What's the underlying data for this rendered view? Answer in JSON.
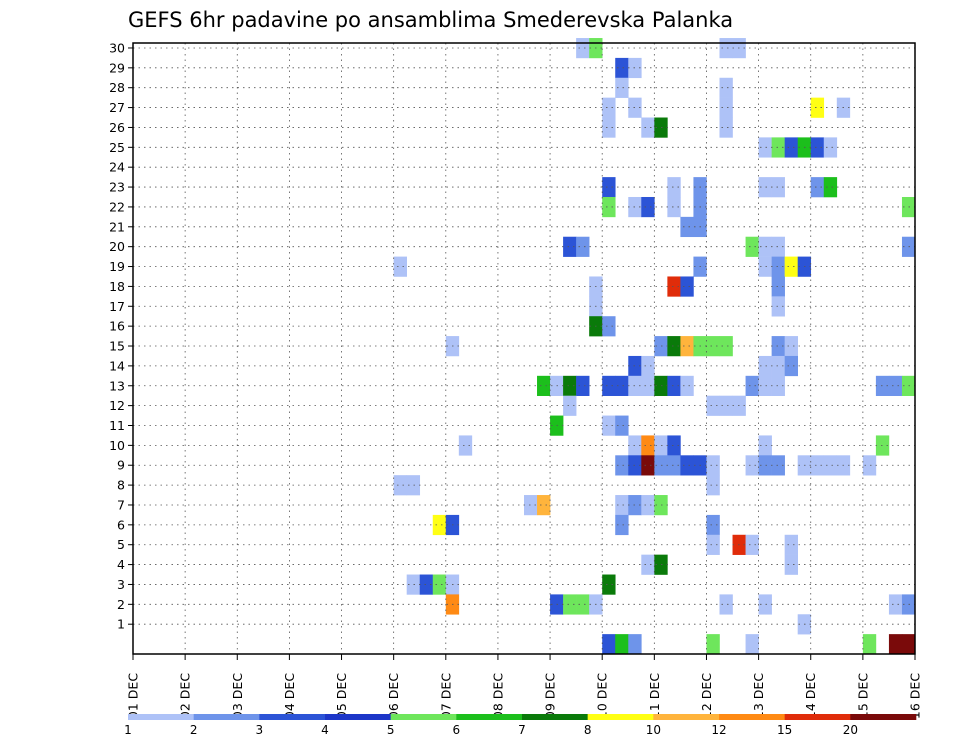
{
  "chart_data": {
    "type": "heatmap",
    "title": "GEFS 6hr padavine po ansamblima Smederevska Palanka",
    "xlabel": "",
    "ylabel": "",
    "x_tick_labels": [
      "01 DEC",
      "02 DEC",
      "03 DEC",
      "04 DEC",
      "05 DEC",
      "06 DEC",
      "07 DEC",
      "08 DEC",
      "09 DEC",
      "10 DEC",
      "11 DEC",
      "12 DEC",
      "13 DEC",
      "14 DEC",
      "15 DEC",
      "16 DEC"
    ],
    "y_tick_labels": [
      "1",
      "2",
      "3",
      "4",
      "5",
      "6",
      "7",
      "8",
      "9",
      "10",
      "11",
      "12",
      "13",
      "14",
      "15",
      "16",
      "17",
      "18",
      "19",
      "20",
      "21",
      "22",
      "23",
      "24",
      "25",
      "26",
      "27",
      "28",
      "29",
      "30"
    ],
    "y_range": [
      0,
      30
    ],
    "time_steps_per_day": 4,
    "time_steps": 60,
    "grid": true,
    "colorbar": {
      "labels": [
        "1",
        "2",
        "3",
        "4",
        "5",
        "6",
        "7",
        "8",
        "10",
        "12",
        "15",
        "20"
      ],
      "colors": [
        "#aec2f7",
        "#6e94ea",
        "#2c54d6",
        "#1d36c8",
        "#6ee65c",
        "#1cbf1c",
        "#0a7a0a",
        "#ffff14",
        "#ffb43c",
        "#ff8a14",
        "#e02c0a",
        "#7a0a0a"
      ]
    },
    "cells": [
      {
        "t": 34,
        "m": 30,
        "v": 1
      },
      {
        "t": 35,
        "m": 30,
        "v": 5
      },
      {
        "t": 45,
        "m": 30,
        "v": 1
      },
      {
        "t": 46,
        "m": 30,
        "v": 1
      },
      {
        "t": 37,
        "m": 29,
        "v": 3
      },
      {
        "t": 38,
        "m": 29,
        "v": 1
      },
      {
        "t": 37,
        "m": 28,
        "v": 1
      },
      {
        "t": 45,
        "m": 28,
        "v": 1
      },
      {
        "t": 36,
        "m": 27,
        "v": 1
      },
      {
        "t": 38,
        "m": 27,
        "v": 1
      },
      {
        "t": 45,
        "m": 27,
        "v": 1
      },
      {
        "t": 52,
        "m": 27,
        "v": 8
      },
      {
        "t": 54,
        "m": 27,
        "v": 1
      },
      {
        "t": 36,
        "m": 26,
        "v": 1
      },
      {
        "t": 39,
        "m": 26,
        "v": 1
      },
      {
        "t": 40,
        "m": 26,
        "v": 7
      },
      {
        "t": 45,
        "m": 26,
        "v": 1
      },
      {
        "t": 48,
        "m": 25,
        "v": 1
      },
      {
        "t": 49,
        "m": 25,
        "v": 5
      },
      {
        "t": 50,
        "m": 25,
        "v": 3
      },
      {
        "t": 51,
        "m": 25,
        "v": 6
      },
      {
        "t": 52,
        "m": 25,
        "v": 3
      },
      {
        "t": 53,
        "m": 25,
        "v": 1
      },
      {
        "t": 36,
        "m": 23,
        "v": 3
      },
      {
        "t": 41,
        "m": 23,
        "v": 1
      },
      {
        "t": 43,
        "m": 23,
        "v": 2
      },
      {
        "t": 48,
        "m": 23,
        "v": 1
      },
      {
        "t": 49,
        "m": 23,
        "v": 1
      },
      {
        "t": 52,
        "m": 23,
        "v": 2
      },
      {
        "t": 53,
        "m": 23,
        "v": 6
      },
      {
        "t": 36,
        "m": 22,
        "v": 5
      },
      {
        "t": 38,
        "m": 22,
        "v": 1
      },
      {
        "t": 39,
        "m": 22,
        "v": 3
      },
      {
        "t": 41,
        "m": 22,
        "v": 1
      },
      {
        "t": 43,
        "m": 22,
        "v": 2
      },
      {
        "t": 59,
        "m": 22,
        "v": 5
      },
      {
        "t": 43,
        "m": 21,
        "v": 2
      },
      {
        "t": 42,
        "m": 21,
        "v": 2
      },
      {
        "t": 33,
        "m": 20,
        "v": 3
      },
      {
        "t": 34,
        "m": 20,
        "v": 2
      },
      {
        "t": 47,
        "m": 20,
        "v": 5
      },
      {
        "t": 48,
        "m": 20,
        "v": 1
      },
      {
        "t": 49,
        "m": 20,
        "v": 1
      },
      {
        "t": 59,
        "m": 20,
        "v": 2
      },
      {
        "t": 20,
        "m": 19,
        "v": 1
      },
      {
        "t": 43,
        "m": 19,
        "v": 2
      },
      {
        "t": 48,
        "m": 19,
        "v": 1
      },
      {
        "t": 49,
        "m": 19,
        "v": 2
      },
      {
        "t": 50,
        "m": 19,
        "v": 8
      },
      {
        "t": 51,
        "m": 19,
        "v": 3
      },
      {
        "t": 35,
        "m": 18,
        "v": 1
      },
      {
        "t": 41,
        "m": 18,
        "v": 15
      },
      {
        "t": 42,
        "m": 18,
        "v": 3
      },
      {
        "t": 49,
        "m": 18,
        "v": 2
      },
      {
        "t": 35,
        "m": 17,
        "v": 1
      },
      {
        "t": 49,
        "m": 17,
        "v": 1
      },
      {
        "t": 35,
        "m": 16,
        "v": 7
      },
      {
        "t": 36,
        "m": 16,
        "v": 2
      },
      {
        "t": 24,
        "m": 15,
        "v": 1
      },
      {
        "t": 40,
        "m": 15,
        "v": 2
      },
      {
        "t": 41,
        "m": 15,
        "v": 7
      },
      {
        "t": 42,
        "m": 15,
        "v": 10
      },
      {
        "t": 43,
        "m": 15,
        "v": 5
      },
      {
        "t": 44,
        "m": 15,
        "v": 5
      },
      {
        "t": 45,
        "m": 15,
        "v": 5
      },
      {
        "t": 49,
        "m": 15,
        "v": 2
      },
      {
        "t": 50,
        "m": 15,
        "v": 1
      },
      {
        "t": 38,
        "m": 14,
        "v": 3
      },
      {
        "t": 39,
        "m": 14,
        "v": 1
      },
      {
        "t": 48,
        "m": 14,
        "v": 1
      },
      {
        "t": 49,
        "m": 14,
        "v": 1
      },
      {
        "t": 50,
        "m": 14,
        "v": 2
      },
      {
        "t": 31,
        "m": 13,
        "v": 6
      },
      {
        "t": 32,
        "m": 13,
        "v": 1
      },
      {
        "t": 33,
        "m": 13,
        "v": 7
      },
      {
        "t": 34,
        "m": 13,
        "v": 3
      },
      {
        "t": 36,
        "m": 13,
        "v": 3
      },
      {
        "t": 37,
        "m": 13,
        "v": 3
      },
      {
        "t": 38,
        "m": 13,
        "v": 1
      },
      {
        "t": 39,
        "m": 13,
        "v": 1
      },
      {
        "t": 40,
        "m": 13,
        "v": 7
      },
      {
        "t": 41,
        "m": 13,
        "v": 3
      },
      {
        "t": 42,
        "m": 13,
        "v": 1
      },
      {
        "t": 47,
        "m": 13,
        "v": 2
      },
      {
        "t": 48,
        "m": 13,
        "v": 1
      },
      {
        "t": 49,
        "m": 13,
        "v": 1
      },
      {
        "t": 57,
        "m": 13,
        "v": 2
      },
      {
        "t": 58,
        "m": 13,
        "v": 2
      },
      {
        "t": 59,
        "m": 13,
        "v": 5
      },
      {
        "t": 33,
        "m": 12,
        "v": 1
      },
      {
        "t": 44,
        "m": 12,
        "v": 1
      },
      {
        "t": 45,
        "m": 12,
        "v": 1
      },
      {
        "t": 46,
        "m": 12,
        "v": 1
      },
      {
        "t": 32,
        "m": 11,
        "v": 6
      },
      {
        "t": 36,
        "m": 11,
        "v": 1
      },
      {
        "t": 37,
        "m": 11,
        "v": 2
      },
      {
        "t": 25,
        "m": 10,
        "v": 1
      },
      {
        "t": 38,
        "m": 10,
        "v": 1
      },
      {
        "t": 39,
        "m": 10,
        "v": 12
      },
      {
        "t": 40,
        "m": 10,
        "v": 1
      },
      {
        "t": 41,
        "m": 10,
        "v": 3
      },
      {
        "t": 48,
        "m": 10,
        "v": 1
      },
      {
        "t": 57,
        "m": 10,
        "v": 5
      },
      {
        "t": 37,
        "m": 9,
        "v": 2
      },
      {
        "t": 38,
        "m": 9,
        "v": 3
      },
      {
        "t": 39,
        "m": 9,
        "v": 20
      },
      {
        "t": 40,
        "m": 9,
        "v": 2
      },
      {
        "t": 41,
        "m": 9,
        "v": 2
      },
      {
        "t": 42,
        "m": 9,
        "v": 3
      },
      {
        "t": 43,
        "m": 9,
        "v": 3
      },
      {
        "t": 44,
        "m": 9,
        "v": 1
      },
      {
        "t": 47,
        "m": 9,
        "v": 1
      },
      {
        "t": 48,
        "m": 9,
        "v": 2
      },
      {
        "t": 49,
        "m": 9,
        "v": 2
      },
      {
        "t": 51,
        "m": 9,
        "v": 1
      },
      {
        "t": 52,
        "m": 9,
        "v": 1
      },
      {
        "t": 53,
        "m": 9,
        "v": 1
      },
      {
        "t": 54,
        "m": 9,
        "v": 1
      },
      {
        "t": 56,
        "m": 9,
        "v": 1
      },
      {
        "t": 20,
        "m": 8,
        "v": 1
      },
      {
        "t": 21,
        "m": 8,
        "v": 1
      },
      {
        "t": 44,
        "m": 8,
        "v": 1
      },
      {
        "t": 30,
        "m": 7,
        "v": 1
      },
      {
        "t": 31,
        "m": 7,
        "v": 10
      },
      {
        "t": 37,
        "m": 7,
        "v": 1
      },
      {
        "t": 38,
        "m": 7,
        "v": 2
      },
      {
        "t": 39,
        "m": 7,
        "v": 1
      },
      {
        "t": 40,
        "m": 7,
        "v": 5
      },
      {
        "t": 23,
        "m": 6,
        "v": 8
      },
      {
        "t": 24,
        "m": 6,
        "v": 3
      },
      {
        "t": 37,
        "m": 6,
        "v": 2
      },
      {
        "t": 44,
        "m": 6,
        "v": 2
      },
      {
        "t": 44,
        "m": 5,
        "v": 1
      },
      {
        "t": 46,
        "m": 5,
        "v": 15
      },
      {
        "t": 47,
        "m": 5,
        "v": 1
      },
      {
        "t": 50,
        "m": 5,
        "v": 1
      },
      {
        "t": 39,
        "m": 4,
        "v": 1
      },
      {
        "t": 40,
        "m": 4,
        "v": 7
      },
      {
        "t": 50,
        "m": 4,
        "v": 1
      },
      {
        "t": 21,
        "m": 3,
        "v": 1
      },
      {
        "t": 22,
        "m": 3,
        "v": 3
      },
      {
        "t": 23,
        "m": 3,
        "v": 5
      },
      {
        "t": 24,
        "m": 3,
        "v": 1
      },
      {
        "t": 36,
        "m": 3,
        "v": 7
      },
      {
        "t": 24,
        "m": 2,
        "v": 12
      },
      {
        "t": 32,
        "m": 2,
        "v": 3
      },
      {
        "t": 33,
        "m": 2,
        "v": 5
      },
      {
        "t": 34,
        "m": 2,
        "v": 5
      },
      {
        "t": 35,
        "m": 2,
        "v": 1
      },
      {
        "t": 45,
        "m": 2,
        "v": 1
      },
      {
        "t": 48,
        "m": 2,
        "v": 1
      },
      {
        "t": 58,
        "m": 2,
        "v": 1
      },
      {
        "t": 59,
        "m": 2,
        "v": 2
      },
      {
        "t": 51,
        "m": 1,
        "v": 1
      },
      {
        "t": 36,
        "m": 0,
        "v": 3
      },
      {
        "t": 37,
        "m": 0,
        "v": 6
      },
      {
        "t": 38,
        "m": 0,
        "v": 2
      },
      {
        "t": 44,
        "m": 0,
        "v": 5
      },
      {
        "t": 47,
        "m": 0,
        "v": 1
      },
      {
        "t": 56,
        "m": 0,
        "v": 5
      },
      {
        "t": 58,
        "m": 0,
        "v": 20
      },
      {
        "t": 59,
        "m": 0,
        "v": 20
      }
    ]
  }
}
